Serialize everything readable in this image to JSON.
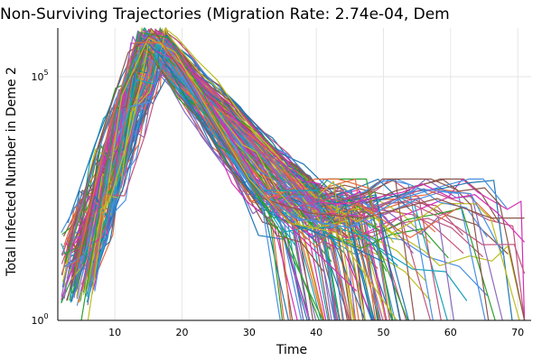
{
  "chart_data": {
    "type": "line",
    "title": "Non-Surviving Trajectories (Migration Rate: 2.74e-04, Dem",
    "xlabel": "Time",
    "ylabel": "Total Infected Number in Deme 2",
    "xlim": [
      1.5,
      72
    ],
    "ylim_log10": [
      0,
      6
    ],
    "x_ticks": [
      10,
      20,
      30,
      40,
      50,
      60,
      70
    ],
    "y_ticks": [
      {
        "value_log10": 0,
        "base": "10",
        "exp": "0"
      },
      {
        "value_log10": 5,
        "base": "10",
        "exp": "5"
      }
    ],
    "grid": true,
    "legend": "none",
    "trajectory_count": 160,
    "series_colors": [
      "#1f77b4",
      "#e26b3c",
      "#2ca02c",
      "#c2557e",
      "#8a6bbe",
      "#8c564b",
      "#d62fb5",
      "#17a2b8",
      "#bcbd22",
      "#4a90e2"
    ],
    "series": [
      {
        "x": [
          3,
          7,
          11,
          14,
          17,
          20,
          27,
          33,
          38,
          44,
          50
        ],
        "y_log10": [
          2.0,
          3.6,
          5.0,
          5.8,
          5.4,
          4.7,
          3.2,
          2.2,
          1.9,
          1.6,
          1.2
        ]
      },
      {
        "x": [
          4,
          8,
          12,
          16,
          19,
          25,
          31,
          36,
          42,
          48,
          56,
          62
        ],
        "y_log10": [
          1.1,
          3.2,
          5.3,
          5.9,
          5.3,
          4.0,
          2.6,
          2.3,
          2.5,
          2.3,
          2.7,
          2.4
        ]
      },
      {
        "x": [
          5,
          9,
          13,
          17,
          21,
          28,
          34,
          40,
          46
        ],
        "y_log10": [
          0.6,
          3.3,
          5.6,
          5.9,
          5.2,
          3.6,
          2.2,
          1.4,
          0.6
        ]
      },
      {
        "x": [
          2,
          6,
          10,
          15,
          18,
          24,
          30,
          37,
          45,
          55,
          63,
          68
        ],
        "y_log10": [
          1.8,
          2.8,
          4.5,
          5.9,
          5.6,
          4.2,
          2.8,
          2.1,
          1.9,
          2.7,
          2.6,
          1.3
        ]
      },
      {
        "x": [
          5,
          10,
          14,
          18,
          23,
          29,
          35,
          41
        ],
        "y_log10": [
          0.0,
          4.2,
          5.9,
          5.8,
          4.7,
          3.1,
          1.7,
          0.0
        ]
      },
      {
        "x": [
          3,
          8,
          12,
          16,
          20,
          26,
          32,
          39,
          47,
          58,
          66,
          71
        ],
        "y_log10": [
          1.5,
          3.8,
          5.5,
          5.9,
          5.1,
          3.7,
          2.5,
          2.2,
          2.1,
          2.5,
          2.1,
          2.1
        ]
      },
      {
        "x": [
          6,
          11,
          15,
          19,
          24,
          30,
          36,
          43,
          52
        ],
        "y_log10": [
          0.0,
          4.6,
          5.8,
          5.5,
          4.3,
          2.9,
          2.0,
          1.8,
          0.0
        ]
      },
      {
        "x": [
          4,
          9,
          13,
          17,
          22,
          28,
          34,
          40,
          46,
          54,
          61
        ],
        "y_log10": [
          0.9,
          3.9,
          5.7,
          5.7,
          4.8,
          3.4,
          2.3,
          1.5,
          2.4,
          1.7,
          2.3
        ]
      }
    ]
  }
}
